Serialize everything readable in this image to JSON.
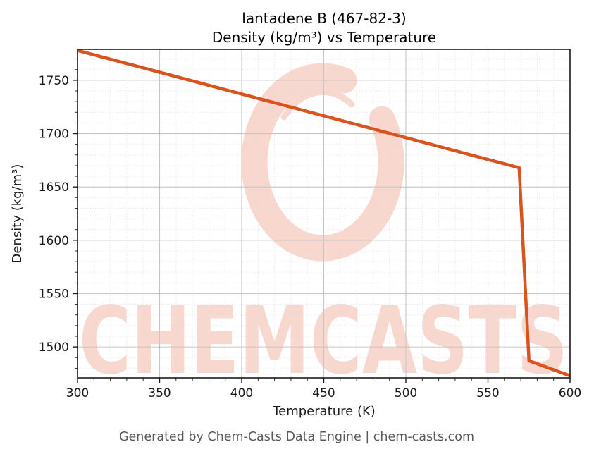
{
  "title": {
    "line1": "lantadene B (467-82-3)",
    "line2": "Density (kg/m³) vs Temperature"
  },
  "footer": {
    "credit": "Generated by Chem-Casts Data Engine | chem-casts.com"
  },
  "watermark": {
    "text": "CHEMCASTS",
    "logo": "c-swirl-logo",
    "color": "#f8d7cf"
  },
  "chart_data": {
    "type": "line",
    "title": "lantadene B (467-82-3) — Density (kg/m³) vs Temperature",
    "xlabel": "Temperature (K)",
    "ylabel": "Density (kg/m³)",
    "series": [
      {
        "name": "density",
        "x": [
          300,
          569,
          575,
          600
        ],
        "y": [
          1778,
          1668,
          1487,
          1473
        ]
      }
    ],
    "xlim": [
      300,
      600
    ],
    "ylim": [
      1471,
      1779
    ],
    "xticks": [
      300,
      350,
      400,
      450,
      500,
      550,
      600
    ],
    "yticks": [
      1500,
      1550,
      1600,
      1650,
      1700,
      1750
    ],
    "minor_step_x": 10,
    "minor_step_y": 10,
    "grid": true,
    "minor_grid": true,
    "legend": false,
    "line_color": "#d9531e",
    "grid_major_color": "#c6c6c6",
    "grid_minor_color": "#dcdcdc",
    "spine_color": "#1a1a1a"
  }
}
